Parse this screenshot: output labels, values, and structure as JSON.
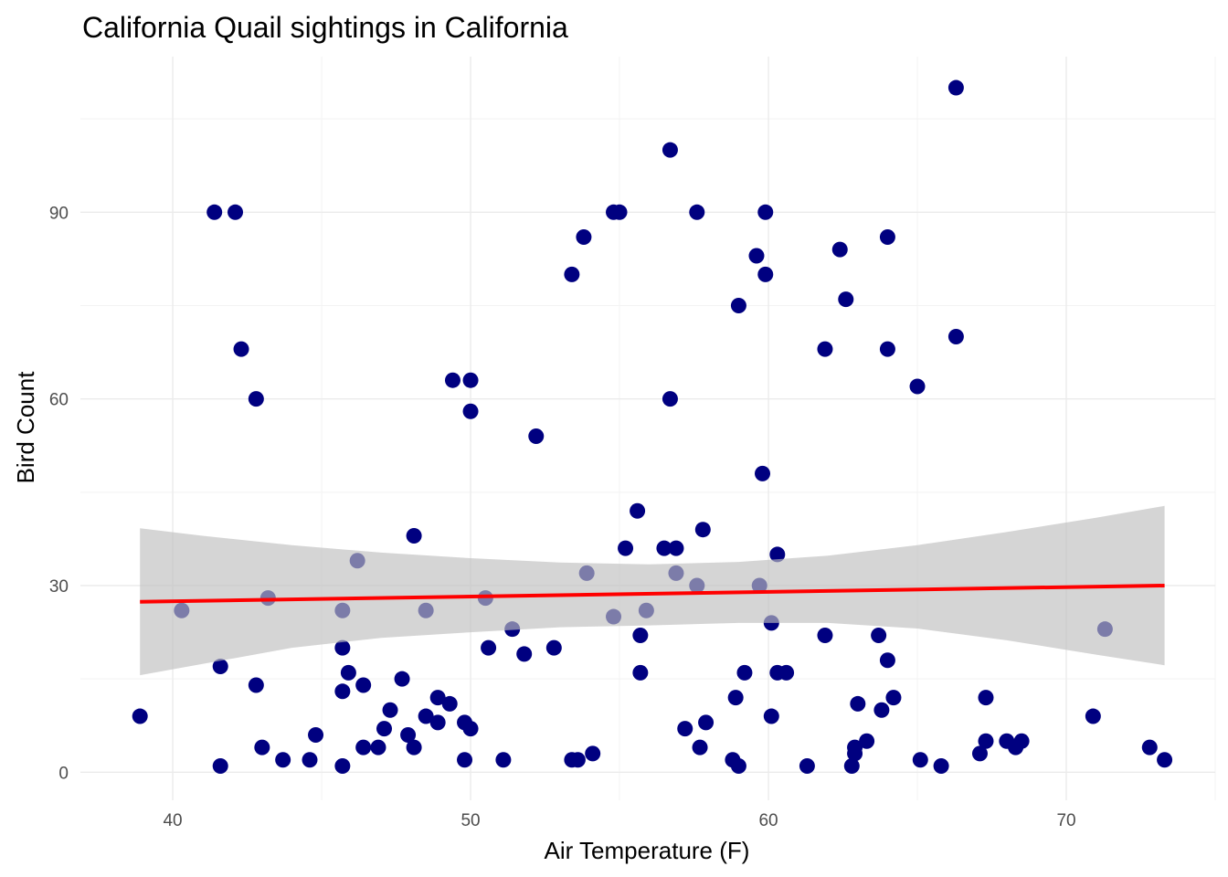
{
  "chart_data": {
    "type": "scatter",
    "title": "California Quail sightings in California",
    "xlabel": "Air Temperature (F)",
    "ylabel": "Bird Count",
    "xlim": [
      36.9,
      75.0
    ],
    "ylim": [
      -4.5,
      115.0
    ],
    "x_ticks": [
      40,
      50,
      60,
      70
    ],
    "y_ticks": [
      0,
      30,
      60,
      90
    ],
    "grid": true,
    "point_color": "#000080",
    "trend_color": "#ff0000",
    "ribbon_color": "#bebebe",
    "points": [
      [
        38.9,
        9
      ],
      [
        40.3,
        26
      ],
      [
        41.4,
        90
      ],
      [
        41.6,
        17
      ],
      [
        41.6,
        1
      ],
      [
        42.1,
        90
      ],
      [
        42.3,
        68
      ],
      [
        42.8,
        60
      ],
      [
        42.8,
        14
      ],
      [
        43.0,
        4
      ],
      [
        43.2,
        28
      ],
      [
        43.7,
        2
      ],
      [
        44.6,
        2
      ],
      [
        44.8,
        6
      ],
      [
        45.7,
        26
      ],
      [
        45.7,
        20
      ],
      [
        45.7,
        13
      ],
      [
        45.7,
        1
      ],
      [
        45.9,
        16
      ],
      [
        46.2,
        34
      ],
      [
        46.4,
        14
      ],
      [
        46.4,
        4
      ],
      [
        46.9,
        4
      ],
      [
        47.1,
        7
      ],
      [
        47.3,
        10
      ],
      [
        47.7,
        15
      ],
      [
        47.9,
        6
      ],
      [
        48.1,
        38
      ],
      [
        48.1,
        4
      ],
      [
        48.5,
        26
      ],
      [
        48.5,
        9
      ],
      [
        48.9,
        12
      ],
      [
        48.9,
        8
      ],
      [
        49.3,
        11
      ],
      [
        49.4,
        63
      ],
      [
        49.8,
        8
      ],
      [
        49.8,
        2
      ],
      [
        50.0,
        63
      ],
      [
        50.0,
        58
      ],
      [
        50.0,
        7
      ],
      [
        50.5,
        28
      ],
      [
        50.6,
        20
      ],
      [
        51.1,
        2
      ],
      [
        51.4,
        23
      ],
      [
        51.8,
        19
      ],
      [
        52.2,
        54
      ],
      [
        52.8,
        20
      ],
      [
        53.4,
        80
      ],
      [
        53.4,
        2
      ],
      [
        53.6,
        2
      ],
      [
        53.8,
        86
      ],
      [
        53.9,
        32
      ],
      [
        54.1,
        3
      ],
      [
        54.8,
        25
      ],
      [
        54.8,
        90
      ],
      [
        55.0,
        90
      ],
      [
        55.2,
        36
      ],
      [
        55.6,
        42
      ],
      [
        55.7,
        22
      ],
      [
        55.7,
        16
      ],
      [
        55.9,
        26
      ],
      [
        56.5,
        36
      ],
      [
        56.7,
        100
      ],
      [
        56.7,
        60
      ],
      [
        56.9,
        36
      ],
      [
        56.9,
        32
      ],
      [
        57.2,
        7
      ],
      [
        57.6,
        90
      ],
      [
        57.6,
        30
      ],
      [
        57.7,
        4
      ],
      [
        57.8,
        39
      ],
      [
        57.9,
        8
      ],
      [
        58.8,
        2
      ],
      [
        58.9,
        12
      ],
      [
        59.0,
        75
      ],
      [
        59.0,
        1
      ],
      [
        59.2,
        16
      ],
      [
        59.6,
        83
      ],
      [
        59.7,
        30
      ],
      [
        59.8,
        48
      ],
      [
        59.9,
        90
      ],
      [
        59.9,
        80
      ],
      [
        60.1,
        24
      ],
      [
        60.1,
        9
      ],
      [
        60.3,
        35
      ],
      [
        60.3,
        16
      ],
      [
        60.6,
        16
      ],
      [
        61.3,
        1
      ],
      [
        61.9,
        68
      ],
      [
        61.9,
        22
      ],
      [
        62.4,
        84
      ],
      [
        62.6,
        76
      ],
      [
        62.8,
        1
      ],
      [
        62.9,
        4
      ],
      [
        62.9,
        3
      ],
      [
        63.0,
        11
      ],
      [
        63.3,
        5
      ],
      [
        63.7,
        22
      ],
      [
        63.8,
        10
      ],
      [
        64.0,
        86
      ],
      [
        64.0,
        68
      ],
      [
        64.0,
        18
      ],
      [
        64.2,
        12
      ],
      [
        65.0,
        62
      ],
      [
        65.1,
        2
      ],
      [
        65.8,
        1
      ],
      [
        66.3,
        110
      ],
      [
        66.3,
        70
      ],
      [
        67.1,
        3
      ],
      [
        67.3,
        12
      ],
      [
        67.3,
        5
      ],
      [
        68.0,
        5
      ],
      [
        68.3,
        4
      ],
      [
        68.5,
        5
      ],
      [
        70.9,
        9
      ],
      [
        71.3,
        23
      ],
      [
        72.8,
        4
      ],
      [
        73.3,
        2
      ]
    ],
    "trend_line": {
      "x": [
        38.9,
        73.3
      ],
      "y": [
        27.4,
        30.0
      ]
    },
    "confidence_band": {
      "x": [
        38.9,
        41.0,
        44.0,
        47.0,
        50.0,
        53.0,
        56.0,
        59.0,
        62.0,
        65.0,
        68.0,
        71.0,
        73.3
      ],
      "upper": [
        39.2,
        38.0,
        36.5,
        35.3,
        34.4,
        33.7,
        33.4,
        33.8,
        34.8,
        36.5,
        38.6,
        40.9,
        42.8
      ],
      "lower": [
        15.6,
        17.4,
        20.0,
        21.6,
        22.5,
        23.3,
        23.6,
        24.0,
        24.0,
        23.1,
        21.2,
        18.9,
        17.2
      ]
    }
  }
}
